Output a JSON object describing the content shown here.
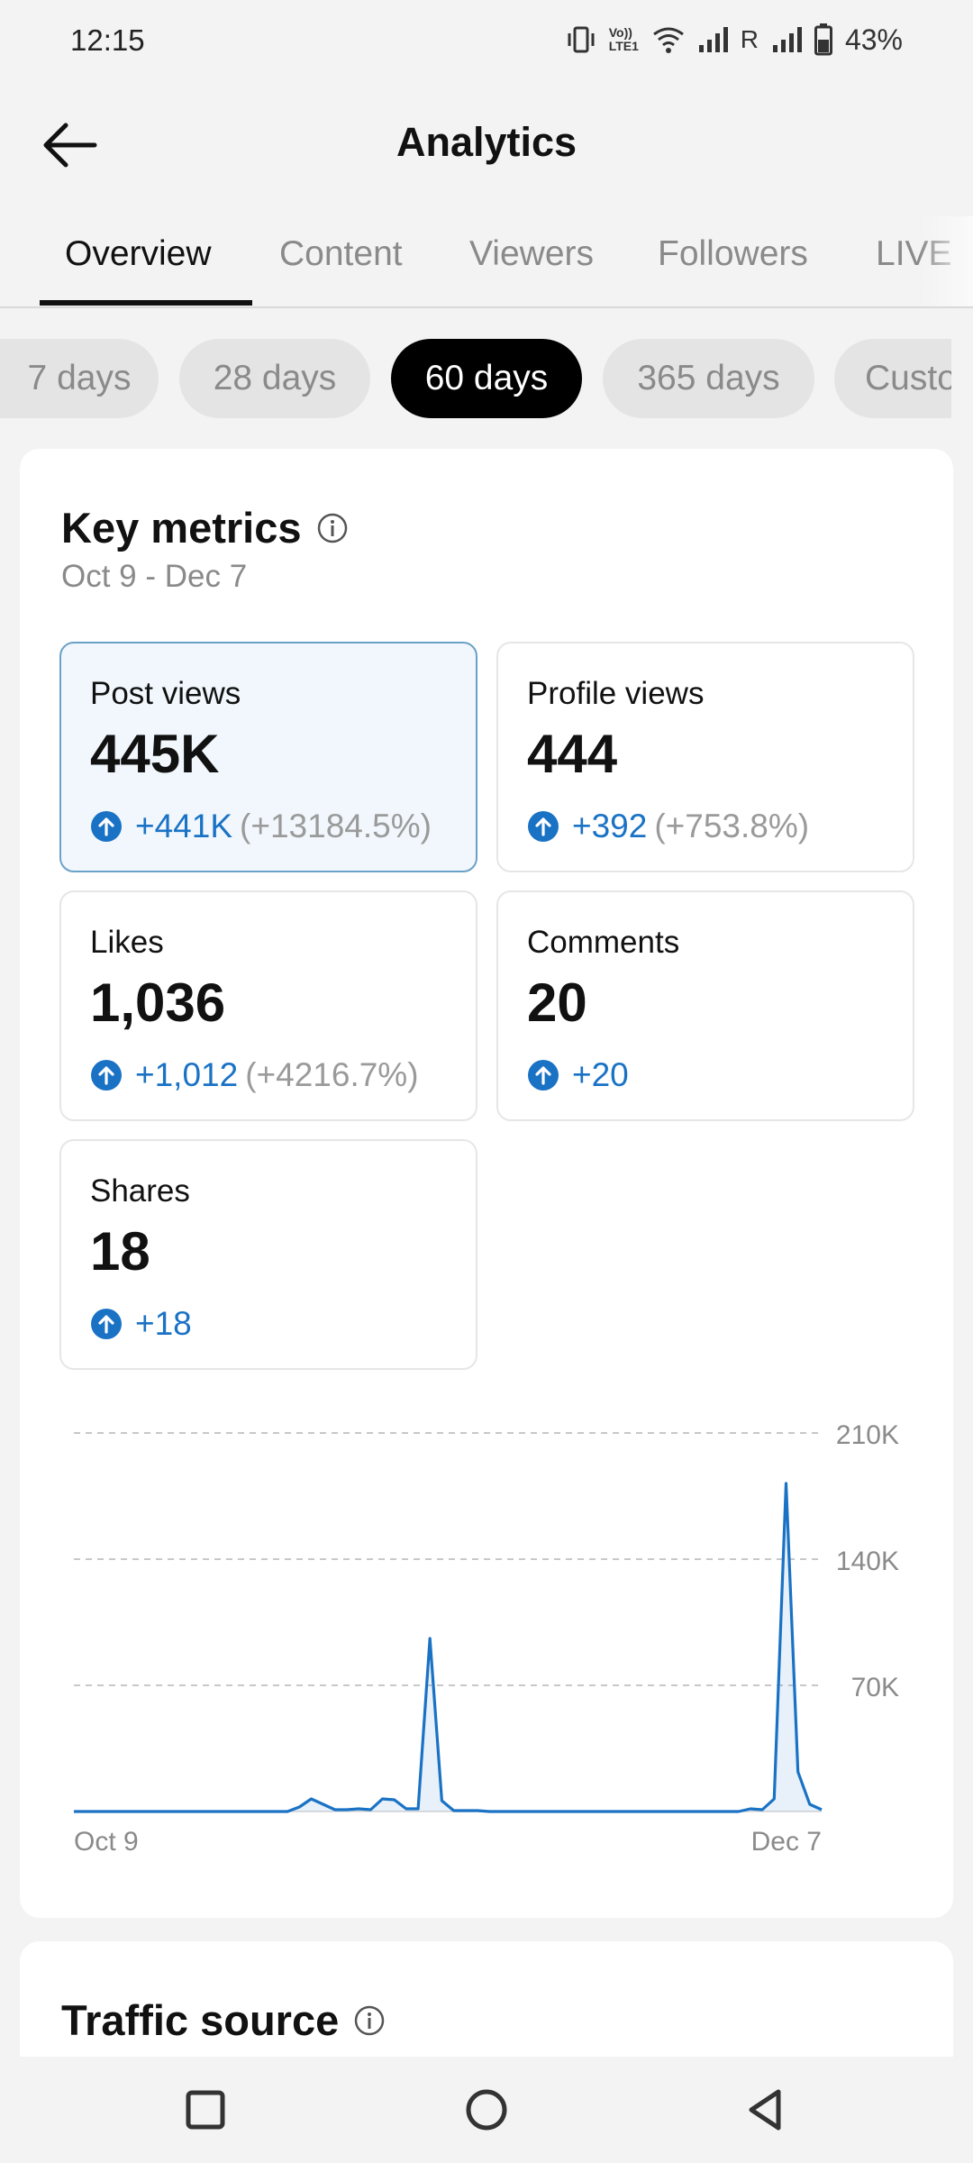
{
  "status_bar": {
    "time": "12:15",
    "network_label": "Vo)) LTE1",
    "roaming": "R",
    "battery": "43%"
  },
  "header": {
    "title": "Analytics",
    "back_icon": "arrow-left-icon"
  },
  "tabs": [
    {
      "label": "Overview",
      "active": true
    },
    {
      "label": "Content",
      "active": false
    },
    {
      "label": "Viewers",
      "active": false
    },
    {
      "label": "Followers",
      "active": false
    },
    {
      "label": "LIVE",
      "active": false
    }
  ],
  "date_chips": [
    {
      "label": "7 days",
      "active": false
    },
    {
      "label": "28 days",
      "active": false
    },
    {
      "label": "60 days",
      "active": true
    },
    {
      "label": "365 days",
      "active": false
    },
    {
      "label": "Custom",
      "active": false
    }
  ],
  "key_metrics": {
    "title": "Key metrics",
    "date_range": "Oct 9 - Dec 7",
    "metrics": [
      {
        "label": "Post views",
        "value": "445K",
        "delta": "+441K",
        "percent": "(+13184.5%)",
        "selected": true
      },
      {
        "label": "Profile views",
        "value": "444",
        "delta": "+392",
        "percent": "(+753.8%)",
        "selected": false
      },
      {
        "label": "Likes",
        "value": "1,036",
        "delta": "+1,012",
        "percent": "(+4216.7%)",
        "selected": false
      },
      {
        "label": "Comments",
        "value": "20",
        "delta": "+20",
        "percent": "",
        "selected": false
      },
      {
        "label": "Shares",
        "value": "18",
        "delta": "+18",
        "percent": "",
        "selected": false
      }
    ]
  },
  "chart_data": {
    "type": "area",
    "title": "",
    "xlabel": "",
    "ylabel": "",
    "x_tick_labels": [
      "Oct 9",
      "Dec 7"
    ],
    "y_ticks": [
      "70K",
      "140K",
      "210K"
    ],
    "ylim": [
      0,
      210000
    ],
    "grid": true,
    "series": [
      {
        "name": "",
        "color": "#1a72c5",
        "values": [
          0,
          0,
          0,
          0,
          0,
          0,
          0,
          0,
          0,
          0,
          0,
          0,
          0,
          0,
          0,
          0,
          0,
          0,
          0,
          2500,
          7000,
          4000,
          1000,
          1000,
          1500,
          1000,
          7000,
          6500,
          1500,
          1500,
          96000,
          6000,
          500,
          500,
          500,
          0,
          0,
          0,
          0,
          0,
          0,
          0,
          0,
          0,
          0,
          0,
          0,
          0,
          0,
          0,
          0,
          0,
          0,
          0,
          0,
          0,
          0,
          1500,
          1000,
          7000,
          182000,
          22000,
          4000,
          1000
        ]
      }
    ]
  },
  "traffic_source": {
    "title": "Traffic source"
  },
  "nav_bar": {
    "recents_icon": "square-icon",
    "home_icon": "circle-icon",
    "back_icon": "triangle-back-icon"
  }
}
